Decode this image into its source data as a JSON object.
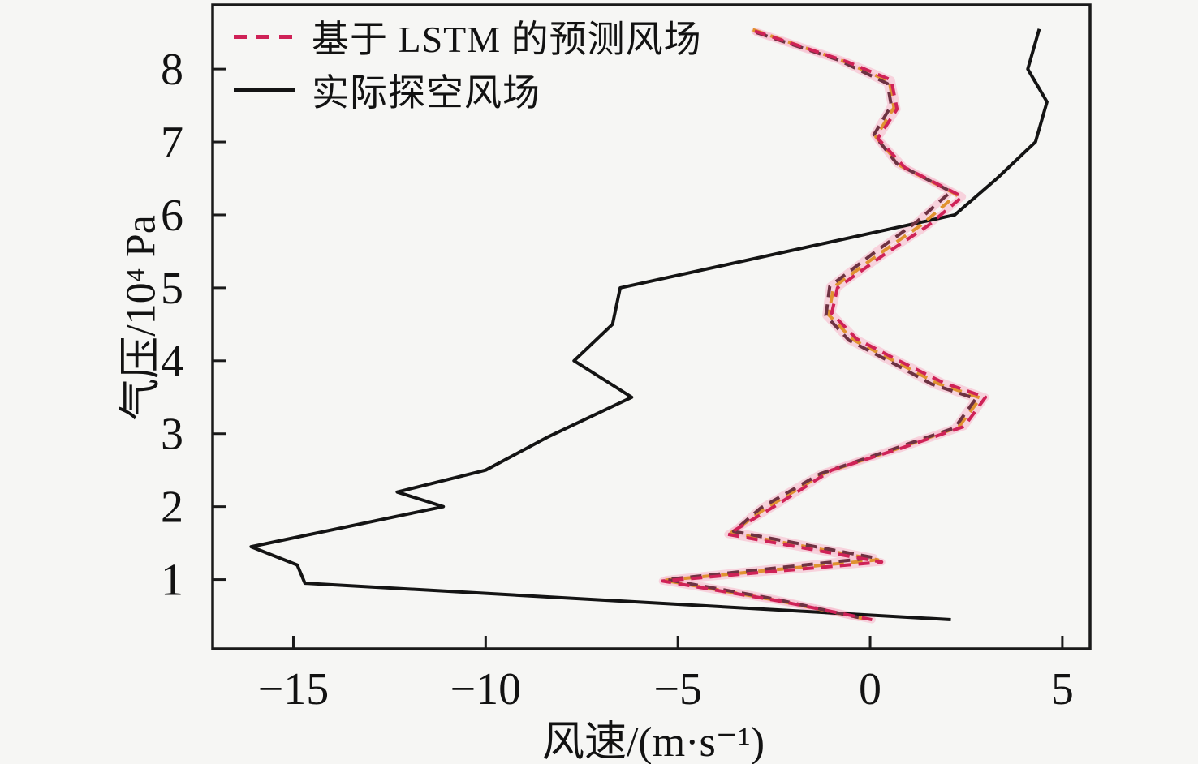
{
  "colors": {
    "background": "#f6f6f4",
    "frame": "#1a1a1a",
    "actual_line": "#141414",
    "pred_crimson": "#cf2257",
    "pred_maroon": "#6e3242",
    "pred_orange": "#e0922f",
    "pred_glow": "#f7bed0",
    "text": "#121212"
  },
  "legend": {
    "items": [
      {
        "label": "基于 LSTM 的预测风场",
        "style": "dashed",
        "color": "#cf2257"
      },
      {
        "label": "实际探空风场",
        "style": "solid",
        "color": "#141414"
      }
    ],
    "position": "top-left"
  },
  "axis_labels": {
    "x": "风速/(m·s⁻¹)",
    "y": "气压/10⁴ Pa"
  },
  "chart_data": {
    "type": "line",
    "title": "",
    "xlabel": "风速/(m·s⁻¹)",
    "ylabel": "气压/10⁴ Pa",
    "xlim": [
      -17.1,
      5.72
    ],
    "ylim": [
      0.05,
      8.88
    ],
    "grid": false,
    "legend_position": "top-left",
    "x_ticks": [
      -15,
      -10,
      -5,
      0,
      5
    ],
    "x_tick_labels": [
      "−15",
      "−10",
      "−5",
      "0",
      "5"
    ],
    "y_ticks": [
      1,
      2,
      3,
      4,
      5,
      6,
      7,
      8
    ],
    "y_tick_labels": [
      "1",
      "2",
      "3",
      "4",
      "5",
      "6",
      "7",
      "8"
    ],
    "series": [
      {
        "name": "actual-sounding-wind",
        "legend_label": "实际探空风场",
        "style": "solid",
        "color": "#141414",
        "width": 4,
        "points": [
          [
            4.4,
            8.55
          ],
          [
            4.1,
            8.0
          ],
          [
            4.6,
            7.55
          ],
          [
            4.3,
            7.0
          ],
          [
            3.3,
            6.5
          ],
          [
            2.2,
            6.0
          ],
          [
            -6.5,
            5.0
          ],
          [
            -6.7,
            4.5
          ],
          [
            -6.9,
            4.4
          ],
          [
            -7.7,
            4.0
          ],
          [
            -6.2,
            3.5
          ],
          [
            -8.4,
            2.95
          ],
          [
            -10.0,
            2.5
          ],
          [
            -12.3,
            2.2
          ],
          [
            -11.1,
            2.0
          ],
          [
            -16.1,
            1.45
          ],
          [
            -14.9,
            1.2
          ],
          [
            -14.7,
            0.95
          ],
          [
            2.1,
            0.45
          ]
        ]
      },
      {
        "name": "lstm-predicted-wind-1",
        "legend_label": "基于 LSTM 的预测风场",
        "style": "dashed",
        "color": "#e0922f",
        "width": 4,
        "glow": false,
        "points": [
          [
            -3.05,
            8.54
          ],
          [
            -0.7,
            8.11
          ],
          [
            0.5,
            7.83
          ],
          [
            0.62,
            7.47
          ],
          [
            0.15,
            7.07
          ],
          [
            0.8,
            6.67
          ],
          [
            2.25,
            6.28
          ],
          [
            1.35,
            5.87
          ],
          [
            0.25,
            5.47
          ],
          [
            -0.95,
            5.01
          ],
          [
            -1.08,
            4.63
          ],
          [
            -0.45,
            4.29
          ],
          [
            0.65,
            3.99
          ],
          [
            1.75,
            3.69
          ],
          [
            2.87,
            3.49
          ],
          [
            2.3,
            3.09
          ],
          [
            0.68,
            2.79
          ],
          [
            -1.15,
            2.47
          ],
          [
            -2.68,
            1.99
          ],
          [
            -3.62,
            1.64
          ],
          [
            0.2,
            1.27
          ],
          [
            -5.35,
            0.99
          ],
          [
            -2.38,
            0.71
          ],
          [
            -0.12,
            0.46
          ]
        ]
      },
      {
        "name": "lstm-predicted-wind-2",
        "legend_label": "基于 LSTM 的预测风场",
        "style": "dashed",
        "color": "#6e3242",
        "width": 4,
        "glow": true,
        "points": [
          [
            -2.95,
            8.5
          ],
          [
            -0.8,
            8.12
          ],
          [
            0.45,
            7.8
          ],
          [
            0.55,
            7.5
          ],
          [
            0.1,
            7.1
          ],
          [
            0.7,
            6.7
          ],
          [
            2.1,
            6.32
          ],
          [
            1.2,
            5.9
          ],
          [
            0.15,
            5.5
          ],
          [
            -1.05,
            5.02
          ],
          [
            -1.15,
            4.62
          ],
          [
            -0.55,
            4.28
          ],
          [
            0.55,
            3.98
          ],
          [
            1.6,
            3.68
          ],
          [
            2.75,
            3.48
          ],
          [
            2.2,
            3.08
          ],
          [
            0.55,
            2.78
          ],
          [
            -1.3,
            2.45
          ],
          [
            -2.85,
            1.98
          ],
          [
            -3.55,
            1.66
          ],
          [
            0.1,
            1.3
          ],
          [
            -5.3,
            1.0
          ],
          [
            -2.45,
            0.73
          ],
          [
            -0.3,
            0.48
          ]
        ]
      },
      {
        "name": "lstm-predicted-wind-3",
        "legend_label": "基于 LSTM 的预测风场",
        "style": "dashed",
        "color": "#cf2257",
        "width": 4,
        "glow": true,
        "points": [
          [
            -3.0,
            8.52
          ],
          [
            -0.6,
            8.1
          ],
          [
            0.55,
            7.85
          ],
          [
            0.7,
            7.45
          ],
          [
            0.2,
            7.05
          ],
          [
            0.9,
            6.65
          ],
          [
            2.4,
            6.25
          ],
          [
            1.5,
            5.85
          ],
          [
            0.35,
            5.45
          ],
          [
            -0.85,
            5.0
          ],
          [
            -1.0,
            4.65
          ],
          [
            -0.35,
            4.3
          ],
          [
            0.75,
            4.0
          ],
          [
            1.9,
            3.7
          ],
          [
            3.0,
            3.5
          ],
          [
            2.45,
            3.1
          ],
          [
            0.8,
            2.8
          ],
          [
            -1.0,
            2.5
          ],
          [
            -2.5,
            2.0
          ],
          [
            -3.7,
            1.62
          ],
          [
            0.3,
            1.24
          ],
          [
            -5.4,
            0.98
          ],
          [
            -2.3,
            0.7
          ],
          [
            0.05,
            0.45
          ]
        ]
      }
    ]
  }
}
